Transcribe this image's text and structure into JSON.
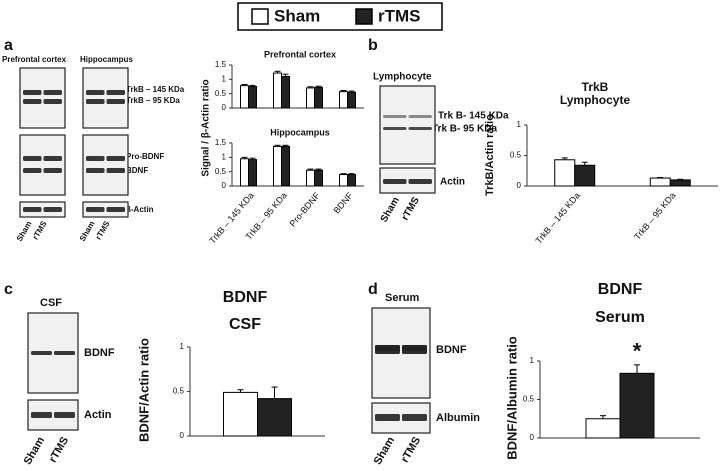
{
  "figure": {
    "panels": [
      {
        "label": "a",
        "headers": [
          "Prefrontal cortex",
          "Hippocampus"
        ],
        "bands": [
          "TrkB – 145 KDa",
          "TrkB – 95 KDa",
          "Pro-BDNF",
          "BDNF",
          "β-Actin"
        ],
        "lanes": [
          "Sham",
          "rTMS"
        ]
      },
      {
        "label": "b",
        "headers": [
          "Lymphocyte"
        ],
        "bands": [
          "Trk B- 145 KDa",
          "Trk B- 95 KDa",
          "Actin"
        ],
        "lanes": [
          "Sham",
          "rTMS"
        ]
      },
      {
        "label": "c",
        "headers": [
          "CSF"
        ],
        "bands": [
          "BDNF",
          "Actin"
        ],
        "lanes": [
          "Sham",
          "rTMS"
        ]
      },
      {
        "label": "d",
        "headers": [
          "Serum"
        ],
        "bands": [
          "BDNF",
          "Albumin"
        ],
        "lanes": [
          "Sham",
          "rTMS"
        ]
      }
    ]
  },
  "chart_data": [
    {
      "type": "bar",
      "title": "Prefrontal cortex",
      "categories": [
        null,
        null,
        null,
        null
      ],
      "series": [
        {
          "name": "Sham",
          "color": "#ffffff",
          "values": [
            0.78,
            1.22,
            0.7,
            0.57
          ],
          "errors": [
            0.04,
            0.06,
            0.04,
            0.04
          ]
        },
        {
          "name": "rTMS",
          "color": "#222222",
          "values": [
            0.75,
            1.1,
            0.72,
            0.55
          ],
          "errors": [
            0.04,
            0.08,
            0.04,
            0.04
          ]
        }
      ],
      "ylim": [
        0,
        1.5
      ],
      "yticks": [
        0,
        0.5,
        1,
        1.5
      ]
    },
    {
      "type": "bar",
      "title": "Hippocampus",
      "ylabel": "Signal / β-Actin ratio",
      "categories": [
        "TrkB – 145 KDa",
        "TrkB – 95 KDa",
        "Pro-BDNF",
        "BDNF"
      ],
      "series": [
        {
          "name": "Sham",
          "color": "#ffffff",
          "values": [
            0.95,
            1.38,
            0.55,
            0.4
          ],
          "errors": [
            0.05,
            0.04,
            0.04,
            0.03
          ]
        },
        {
          "name": "rTMS",
          "color": "#222222",
          "values": [
            0.92,
            1.38,
            0.55,
            0.4
          ],
          "errors": [
            0.05,
            0.04,
            0.04,
            0.03
          ]
        }
      ],
      "ylim": [
        0,
        1.5
      ],
      "yticks": [
        0,
        0.5,
        1,
        1.5
      ]
    },
    {
      "type": "bar",
      "title": "TrkB",
      "subtitle": "Lymphocyte",
      "ylabel": "TrkB/Actin ratio",
      "categories": [
        "TrkB – 145 KDa",
        "TrkB – 95 KDa"
      ],
      "series": [
        {
          "name": "Sham",
          "color": "#ffffff",
          "values": [
            0.43,
            0.13
          ],
          "errors": [
            0.03,
            0.01
          ]
        },
        {
          "name": "rTMS",
          "color": "#222222",
          "values": [
            0.34,
            0.1
          ],
          "errors": [
            0.05,
            0.01
          ]
        }
      ],
      "ylim": [
        0,
        1
      ],
      "yticks": [
        0,
        0.5,
        1
      ]
    },
    {
      "type": "bar",
      "title": "BDNF",
      "subtitle": "CSF",
      "ylabel": "BDNF/Actin ratio",
      "categories": [
        null
      ],
      "series": [
        {
          "name": "Sham",
          "color": "#ffffff",
          "values": [
            0.49
          ],
          "errors": [
            0.03
          ]
        },
        {
          "name": "rTMS",
          "color": "#222222",
          "values": [
            0.42
          ],
          "errors": [
            0.13
          ]
        }
      ],
      "ylim": [
        0,
        1
      ],
      "yticks": [
        0,
        0.5,
        1
      ]
    },
    {
      "type": "bar",
      "title": "BDNF",
      "subtitle": "Serum",
      "ylabel": "BDNF/Albumin ratio",
      "categories": [
        null
      ],
      "annotation": "*",
      "series": [
        {
          "name": "Sham",
          "color": "#ffffff",
          "values": [
            0.25
          ],
          "errors": [
            0.04
          ]
        },
        {
          "name": "rTMS",
          "color": "#222222",
          "values": [
            0.84
          ],
          "errors": [
            0.11
          ]
        }
      ],
      "ylim": [
        0,
        1
      ],
      "yticks": [
        0,
        0.5,
        1
      ]
    }
  ]
}
